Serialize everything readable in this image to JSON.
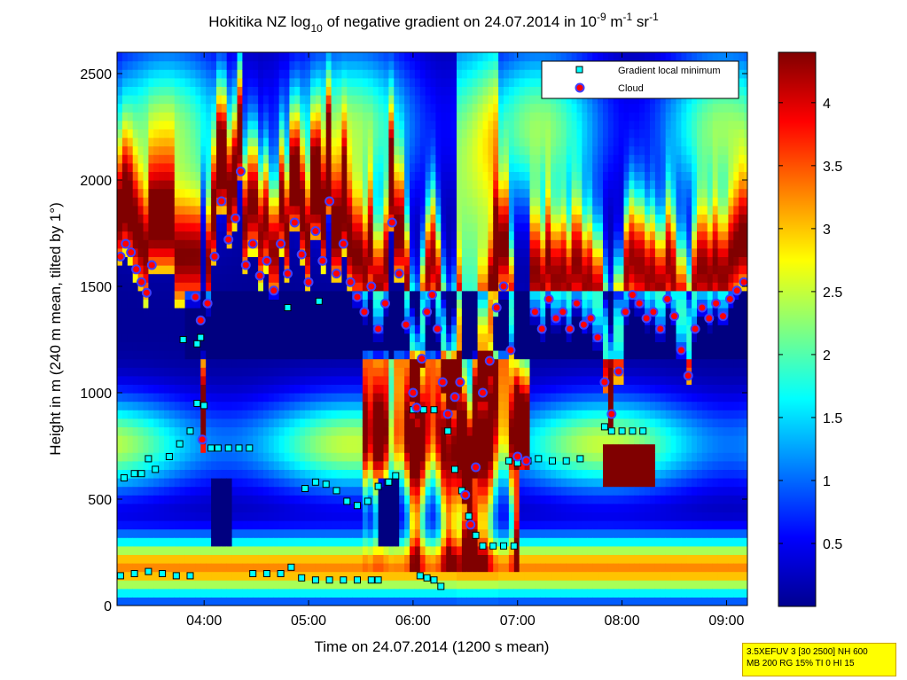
{
  "chart_data": {
    "type": "heatmap",
    "title_parts": {
      "a": "Hokitika NZ log",
      "a_sub": "10",
      "b": " of negative gradient on 24.07.2014 in 10",
      "b_sup": "-9",
      "c": " m",
      "c_sup": "-1",
      "d": " sr",
      "d_sup": "-1"
    },
    "xlabel": "Time on 24.07.2014 (1200 s mean)",
    "ylabel": "Height in m (240 m mean, tilted by 1°)",
    "x_range": [
      "03:10",
      "09:12"
    ],
    "x_ticks": [
      "04:00",
      "05:00",
      "06:00",
      "07:00",
      "08:00",
      "09:00"
    ],
    "ylim": [
      0,
      2600
    ],
    "y_ticks": [
      "0",
      "500",
      "1000",
      "1500",
      "2000",
      "2500"
    ],
    "colorbar": {
      "colormap": "jet",
      "range": [
        0,
        4.4
      ],
      "ticks": [
        "0.5",
        "1",
        "1.5",
        "2",
        "2.5",
        "3",
        "3.5",
        "4"
      ]
    },
    "legend": {
      "position": "top-right",
      "entries": [
        {
          "label": "Gradient local minimum",
          "marker": "square",
          "color": "#00ffff"
        },
        {
          "label": "Cloud",
          "marker": "circle",
          "color": "#ff0000"
        }
      ]
    },
    "series": [
      {
        "name": "Cloud",
        "points": [
          [
            "03:12",
            1640
          ],
          [
            "03:15",
            1700
          ],
          [
            "03:18",
            1660
          ],
          [
            "03:21",
            1580
          ],
          [
            "03:24",
            1520
          ],
          [
            "03:27",
            1470
          ],
          [
            "03:30",
            1600
          ],
          [
            "03:55",
            1450
          ],
          [
            "03:58",
            1340
          ],
          [
            "03:59",
            780
          ],
          [
            "04:02",
            1420
          ],
          [
            "04:06",
            1640
          ],
          [
            "04:10",
            1900
          ],
          [
            "04:14",
            1720
          ],
          [
            "04:18",
            1820
          ],
          [
            "04:21",
            2040
          ],
          [
            "04:24",
            1600
          ],
          [
            "04:28",
            1700
          ],
          [
            "04:32",
            1550
          ],
          [
            "04:36",
            1620
          ],
          [
            "04:40",
            1480
          ],
          [
            "04:44",
            1700
          ],
          [
            "04:48",
            1560
          ],
          [
            "04:52",
            1800
          ],
          [
            "04:56",
            1650
          ],
          [
            "05:00",
            1520
          ],
          [
            "05:04",
            1760
          ],
          [
            "05:08",
            1620
          ],
          [
            "05:12",
            1900
          ],
          [
            "05:16",
            1560
          ],
          [
            "05:20",
            1700
          ],
          [
            "05:24",
            1520
          ],
          [
            "05:28",
            1450
          ],
          [
            "05:32",
            1380
          ],
          [
            "05:36",
            1500
          ],
          [
            "05:40",
            1300
          ],
          [
            "05:44",
            1420
          ],
          [
            "05:48",
            1800
          ],
          [
            "05:52",
            1560
          ],
          [
            "05:56",
            1320
          ],
          [
            "06:00",
            1000
          ],
          [
            "06:02",
            930
          ],
          [
            "06:05",
            1160
          ],
          [
            "06:08",
            1380
          ],
          [
            "06:11",
            1460
          ],
          [
            "06:14",
            1300
          ],
          [
            "06:17",
            1050
          ],
          [
            "06:20",
            900
          ],
          [
            "06:24",
            980
          ],
          [
            "06:27",
            1050
          ],
          [
            "06:30",
            520
          ],
          [
            "06:33",
            380
          ],
          [
            "06:36",
            650
          ],
          [
            "06:40",
            1000
          ],
          [
            "06:44",
            1150
          ],
          [
            "06:48",
            1400
          ],
          [
            "06:52",
            1500
          ],
          [
            "06:56",
            1200
          ],
          [
            "07:00",
            700
          ],
          [
            "07:05",
            680
          ],
          [
            "07:10",
            1380
          ],
          [
            "07:14",
            1300
          ],
          [
            "07:18",
            1440
          ],
          [
            "07:22",
            1350
          ],
          [
            "07:26",
            1380
          ],
          [
            "07:30",
            1300
          ],
          [
            "07:34",
            1420
          ],
          [
            "07:38",
            1320
          ],
          [
            "07:42",
            1350
          ],
          [
            "07:46",
            1260
          ],
          [
            "07:50",
            1050
          ],
          [
            "07:54",
            900
          ],
          [
            "07:58",
            1100
          ],
          [
            "08:02",
            1380
          ],
          [
            "08:06",
            1460
          ],
          [
            "08:10",
            1420
          ],
          [
            "08:14",
            1350
          ],
          [
            "08:18",
            1380
          ],
          [
            "08:22",
            1300
          ],
          [
            "08:26",
            1440
          ],
          [
            "08:30",
            1360
          ],
          [
            "08:34",
            1200
          ],
          [
            "08:38",
            1080
          ],
          [
            "08:42",
            1300
          ],
          [
            "08:46",
            1400
          ],
          [
            "08:50",
            1350
          ],
          [
            "08:54",
            1420
          ],
          [
            "08:58",
            1360
          ],
          [
            "09:02",
            1440
          ],
          [
            "09:06",
            1480
          ],
          [
            "09:10",
            1520
          ]
        ]
      },
      {
        "name": "Gradient local minimum",
        "points": [
          [
            "03:14",
            600
          ],
          [
            "03:20",
            620
          ],
          [
            "03:24",
            620
          ],
          [
            "03:28",
            690
          ],
          [
            "03:32",
            640
          ],
          [
            "03:40",
            700
          ],
          [
            "03:46",
            760
          ],
          [
            "03:52",
            820
          ],
          [
            "03:56",
            950
          ],
          [
            "04:00",
            940
          ],
          [
            "04:04",
            740
          ],
          [
            "04:08",
            740
          ],
          [
            "04:14",
            740
          ],
          [
            "04:20",
            740
          ],
          [
            "04:26",
            740
          ],
          [
            "03:12",
            140
          ],
          [
            "03:20",
            150
          ],
          [
            "03:28",
            160
          ],
          [
            "03:36",
            150
          ],
          [
            "03:44",
            140
          ],
          [
            "03:52",
            140
          ],
          [
            "04:28",
            150
          ],
          [
            "04:36",
            150
          ],
          [
            "04:44",
            150
          ],
          [
            "04:50",
            180
          ],
          [
            "04:56",
            130
          ],
          [
            "05:04",
            120
          ],
          [
            "05:12",
            120
          ],
          [
            "05:20",
            120
          ],
          [
            "05:28",
            120
          ],
          [
            "05:36",
            120
          ],
          [
            "05:40",
            120
          ],
          [
            "04:58",
            550
          ],
          [
            "05:04",
            580
          ],
          [
            "05:10",
            570
          ],
          [
            "05:16",
            540
          ],
          [
            "05:22",
            490
          ],
          [
            "05:28",
            470
          ],
          [
            "05:34",
            490
          ],
          [
            "05:40",
            560
          ],
          [
            "05:46",
            580
          ],
          [
            "05:50",
            610
          ],
          [
            "06:04",
            140
          ],
          [
            "06:08",
            130
          ],
          [
            "06:12",
            120
          ],
          [
            "06:16",
            90
          ],
          [
            "06:00",
            920
          ],
          [
            "06:06",
            920
          ],
          [
            "06:12",
            920
          ],
          [
            "06:20",
            820
          ],
          [
            "06:24",
            640
          ],
          [
            "06:28",
            540
          ],
          [
            "06:32",
            420
          ],
          [
            "06:36",
            330
          ],
          [
            "06:40",
            280
          ],
          [
            "06:46",
            280
          ],
          [
            "06:52",
            280
          ],
          [
            "06:58",
            280
          ],
          [
            "06:55",
            680
          ],
          [
            "07:00",
            670
          ],
          [
            "07:06",
            680
          ],
          [
            "07:12",
            690
          ],
          [
            "07:20",
            680
          ],
          [
            "07:28",
            680
          ],
          [
            "07:36",
            690
          ],
          [
            "07:50",
            840
          ],
          [
            "07:54",
            820
          ],
          [
            "08:00",
            820
          ],
          [
            "08:06",
            820
          ],
          [
            "08:12",
            820
          ],
          [
            "03:48",
            1250
          ],
          [
            "03:56",
            1230
          ],
          [
            "03:58",
            1260
          ],
          [
            "04:48",
            1400
          ],
          [
            "05:06",
            1430
          ]
        ]
      }
    ]
  },
  "info_box": {
    "line1": "3.5XEFUV 3 [30 2500] NH 600",
    "line2": "MB 200 RG 15% TI 0 HI 15"
  }
}
